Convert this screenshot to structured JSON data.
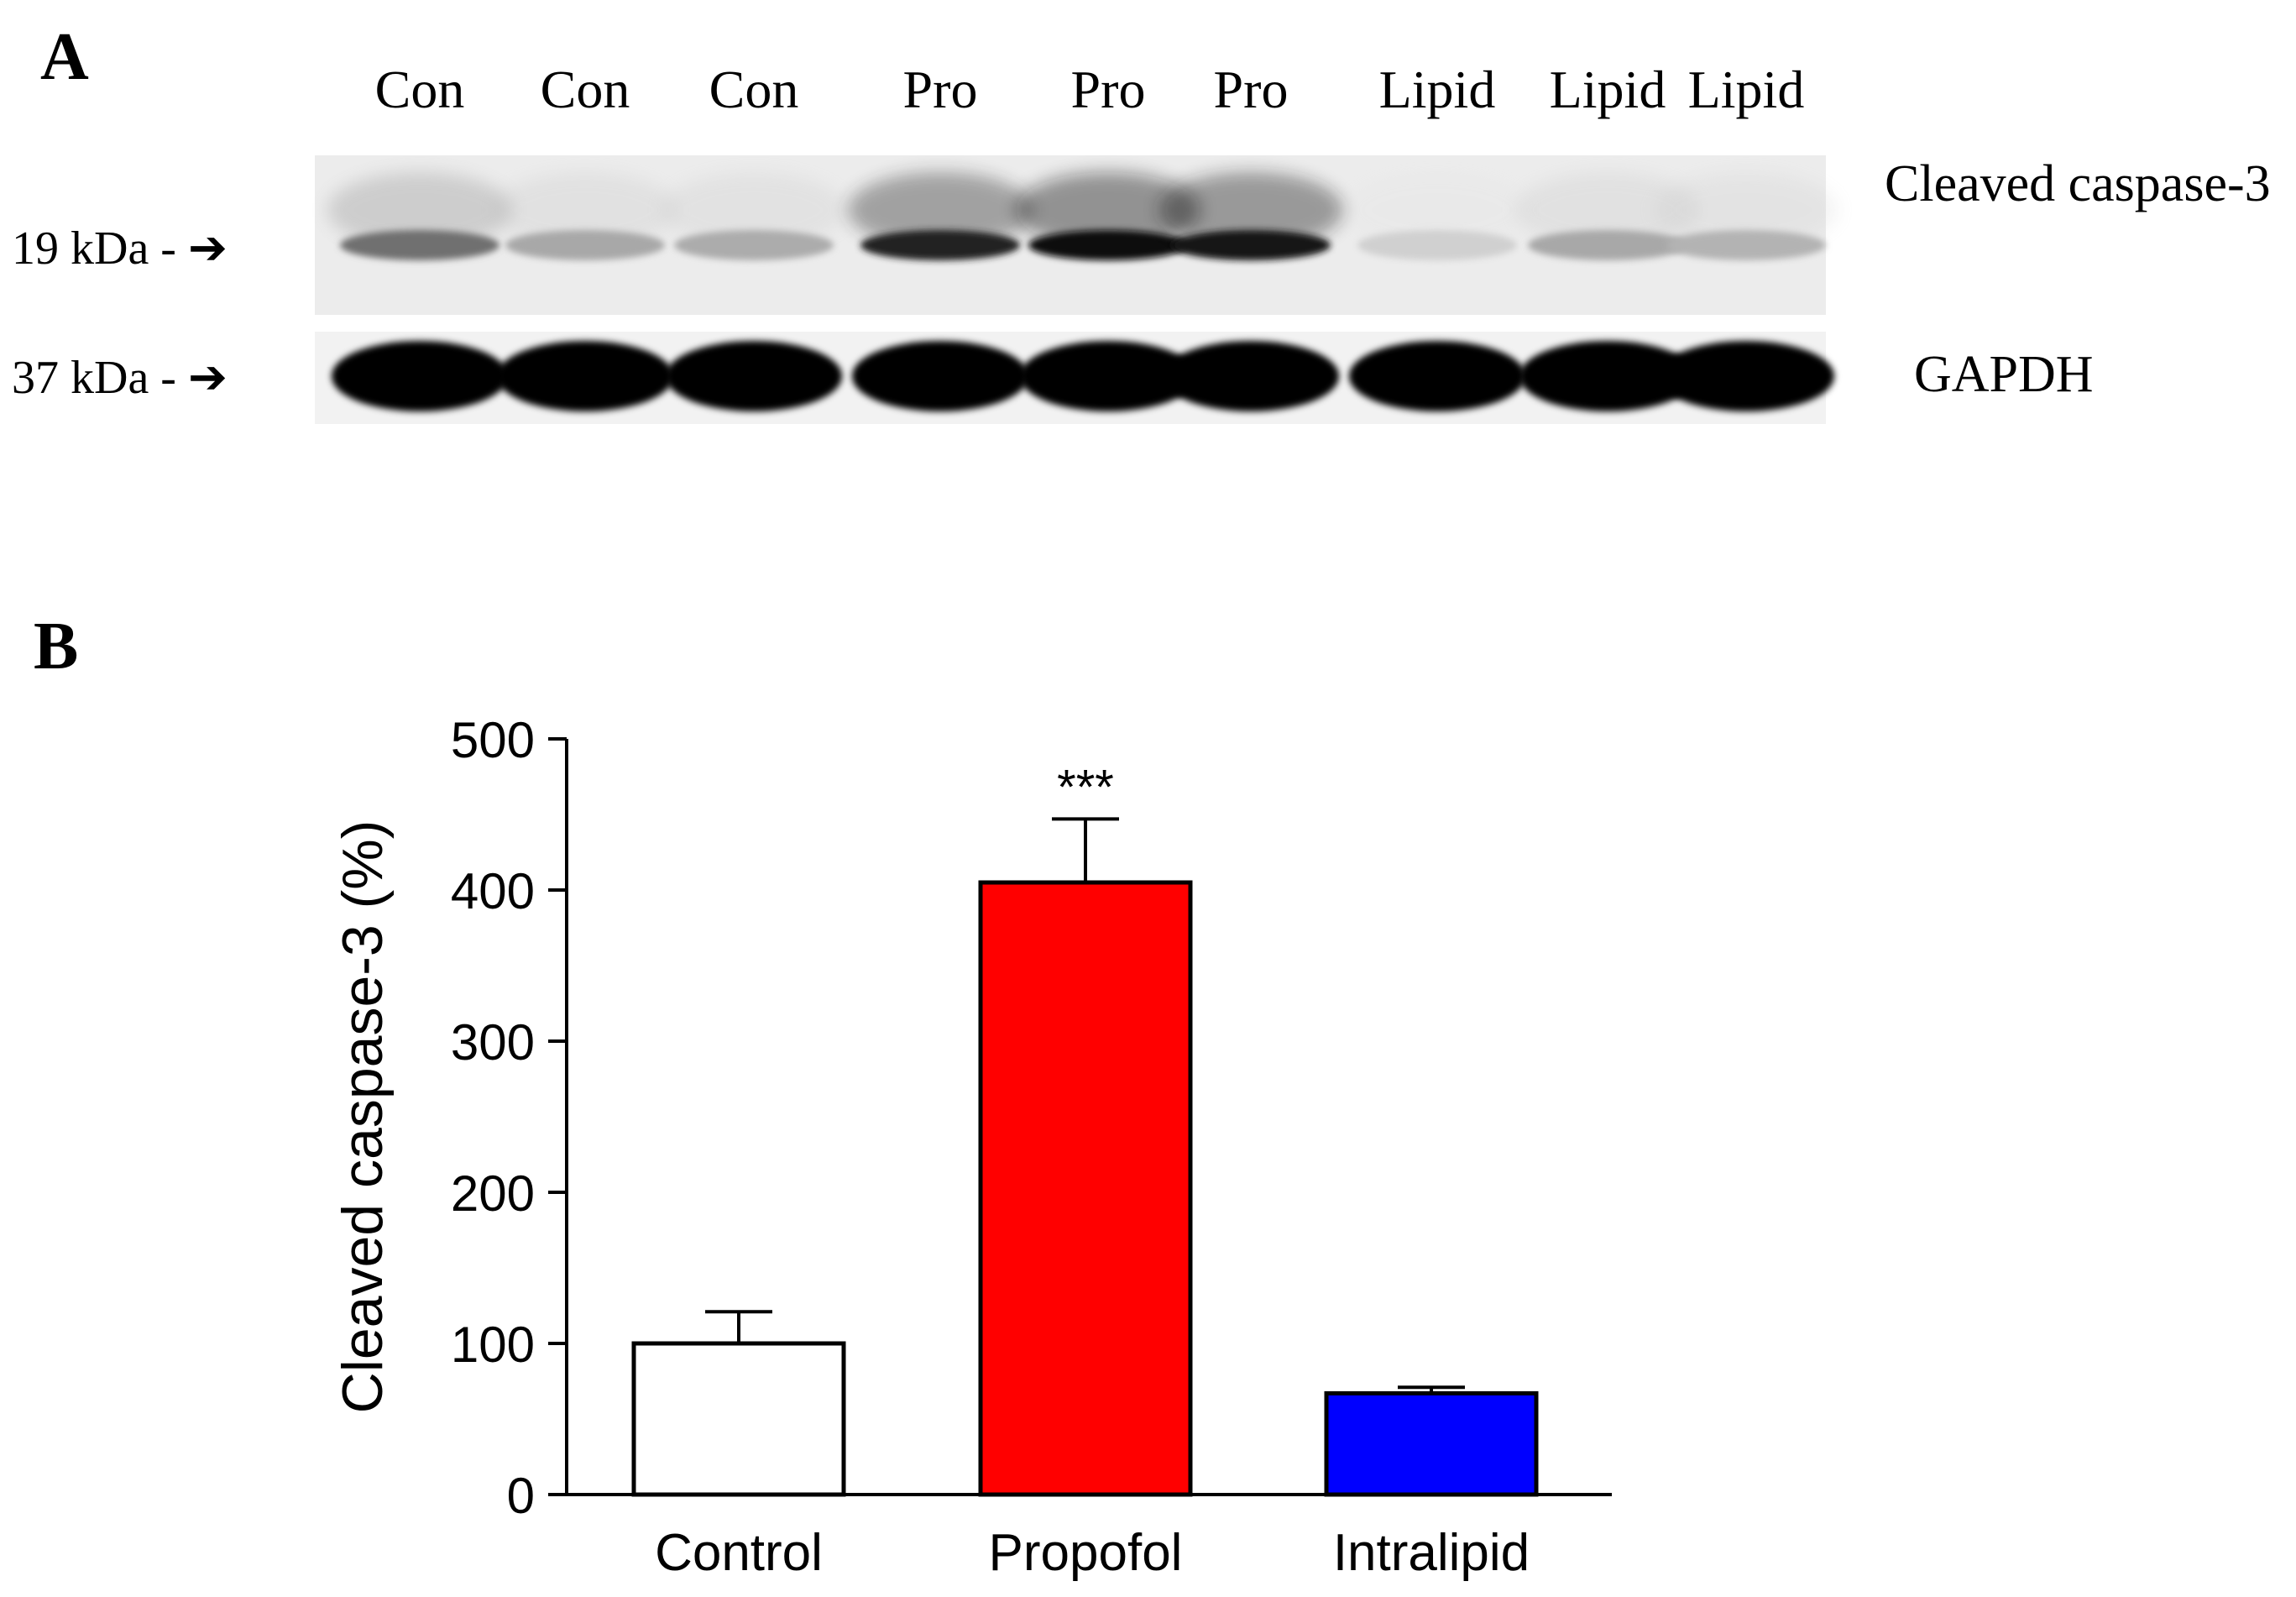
{
  "panel_a": {
    "letter": "A",
    "lane_labels": [
      "Con",
      "Con",
      "Con",
      "Pro",
      "Pro",
      "Pro",
      "Lipid",
      "Lipid",
      "Lipid"
    ],
    "band_caspase_label": "Cleaved caspase-3",
    "band_gapdh_label": "GAPDH",
    "mw_caspase": "19 kDa",
    "mw_gapdh": "37 kDa",
    "caspase_band_intensity": [
      0.55,
      0.3,
      0.28,
      0.9,
      1.0,
      0.95,
      0.12,
      0.3,
      0.25
    ]
  },
  "panel_b": {
    "letter": "B"
  },
  "chart_data": {
    "type": "bar",
    "categories": [
      "Control",
      "Propofol",
      "Intralipid"
    ],
    "values": [
      100,
      405,
      67
    ],
    "errors": [
      21,
      42,
      4
    ],
    "colors": [
      "#ffffff",
      "#ff0000",
      "#0000ff"
    ],
    "annotations": [
      "",
      "***",
      ""
    ],
    "ylabel": "Cleaved caspase-3 (%)",
    "xlabel": "",
    "ylim": [
      0,
      500
    ],
    "yticks": [
      0,
      100,
      200,
      300,
      400,
      500
    ],
    "grid": false
  }
}
